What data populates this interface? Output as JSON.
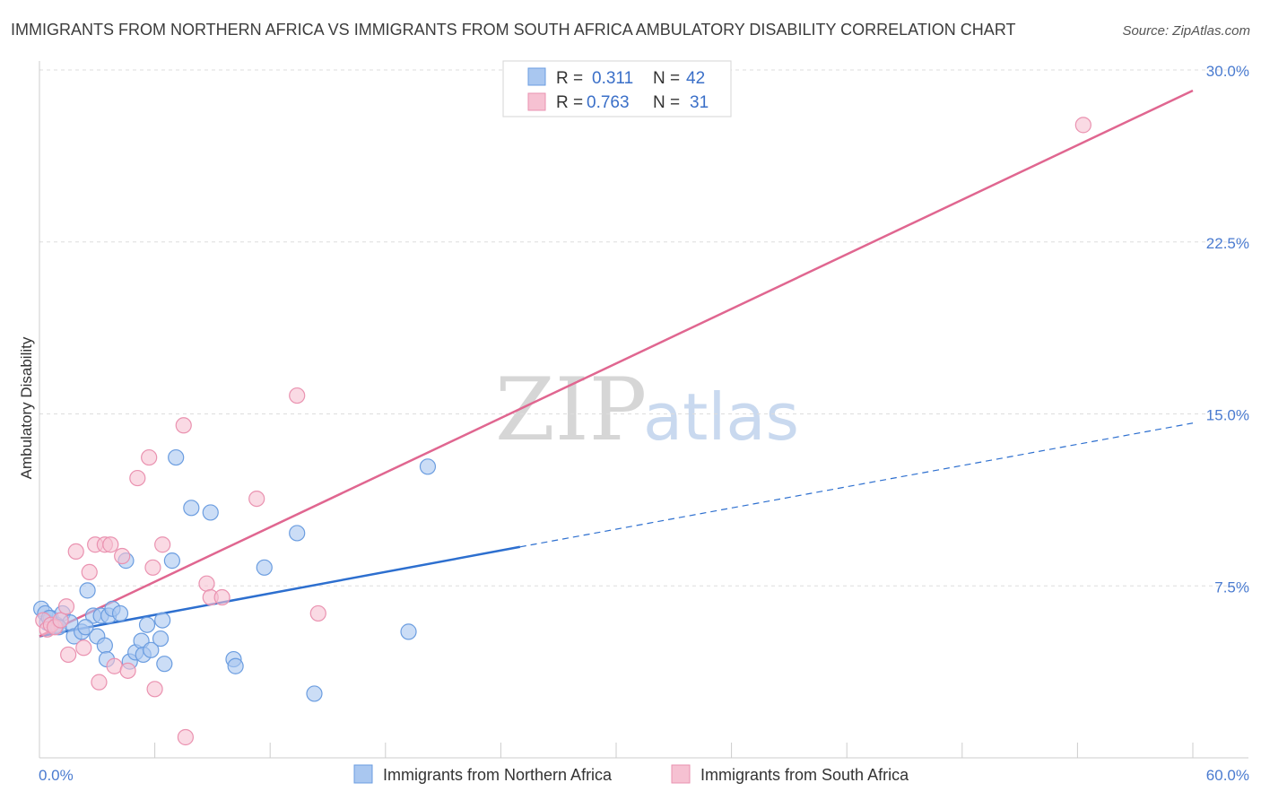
{
  "header": {
    "title": "IMMIGRANTS FROM NORTHERN AFRICA VS IMMIGRANTS FROM SOUTH AFRICA AMBULATORY DISABILITY CORRELATION CHART",
    "source": "Source: ZipAtlas.com"
  },
  "watermark": {
    "zip": "ZIP",
    "atlas": "atlas"
  },
  "legend_top": {
    "r_label": "R =",
    "n_label": "N =",
    "rows": [
      {
        "r": "0.311",
        "n": "42"
      },
      {
        "r": "0.763",
        "n": "31"
      }
    ]
  },
  "legend_bottom": [
    "Immigrants from Northern Africa",
    "Immigrants from South Africa"
  ],
  "colors": {
    "blue_fill": "#a9c7f0",
    "blue_stroke": "#6b9de0",
    "blue_line": "#2d6fcf",
    "pink_fill": "#f6c1d2",
    "pink_stroke": "#ea92b0",
    "pink_line": "#e06690",
    "tick_text": "#4a7bd0",
    "grid": "#dddddd"
  },
  "chart_data": {
    "type": "scatter",
    "title": "IMMIGRANTS FROM NORTHERN AFRICA VS IMMIGRANTS FROM SOUTH AFRICA AMBULATORY DISABILITY CORRELATION CHART",
    "xlabel": "",
    "ylabel": "Ambulatory Disability",
    "xlim": [
      0,
      60
    ],
    "ylim": [
      0,
      30
    ],
    "x_tick_labels": [
      "0.0%",
      "60.0%"
    ],
    "y_ticks": [
      7.5,
      15.0,
      22.5,
      30.0
    ],
    "y_tick_labels": [
      "7.5%",
      "15.0%",
      "22.5%",
      "30.0%"
    ],
    "grid": true,
    "legend_position": "top-center",
    "series": [
      {
        "name": "Immigrants from Northern Africa",
        "r": 0.311,
        "n": 42,
        "points": [
          [
            0.1,
            6.5
          ],
          [
            0.3,
            6.3
          ],
          [
            0.4,
            5.9
          ],
          [
            0.6,
            6.1
          ],
          [
            0.9,
            5.8
          ],
          [
            1.2,
            6.3
          ],
          [
            1.6,
            5.9
          ],
          [
            1.8,
            5.3
          ],
          [
            2.2,
            5.5
          ],
          [
            2.5,
            7.3
          ],
          [
            2.8,
            6.2
          ],
          [
            3.0,
            5.3
          ],
          [
            3.2,
            6.2
          ],
          [
            3.4,
            4.9
          ],
          [
            3.5,
            4.3
          ],
          [
            3.6,
            6.2
          ],
          [
            3.8,
            6.5
          ],
          [
            4.2,
            6.3
          ],
          [
            4.5,
            8.6
          ],
          [
            4.7,
            4.2
          ],
          [
            5.0,
            4.6
          ],
          [
            5.3,
            5.1
          ],
          [
            5.4,
            4.5
          ],
          [
            5.6,
            5.8
          ],
          [
            5.8,
            4.7
          ],
          [
            6.3,
            5.2
          ],
          [
            6.4,
            6.0
          ],
          [
            6.5,
            4.1
          ],
          [
            6.9,
            8.6
          ],
          [
            7.1,
            13.1
          ],
          [
            7.9,
            10.9
          ],
          [
            8.9,
            10.7
          ],
          [
            10.1,
            4.3
          ],
          [
            10.2,
            4.0
          ],
          [
            11.7,
            8.3
          ],
          [
            13.4,
            9.8
          ],
          [
            14.3,
            2.8
          ],
          [
            19.2,
            5.5
          ],
          [
            20.2,
            12.7
          ],
          [
            0.5,
            6.1
          ],
          [
            1.0,
            5.7
          ],
          [
            2.4,
            5.7
          ]
        ],
        "trend": {
          "x": [
            0,
            25
          ],
          "y": [
            5.3,
            9.2
          ],
          "dashed_to": {
            "x": [
              25,
              60
            ],
            "y": [
              9.2,
              14.6
            ]
          }
        }
      },
      {
        "name": "Immigrants from South Africa",
        "r": 0.763,
        "n": 31,
        "points": [
          [
            0.2,
            6.0
          ],
          [
            0.4,
            5.6
          ],
          [
            0.6,
            5.8
          ],
          [
            0.8,
            5.7
          ],
          [
            1.1,
            6.0
          ],
          [
            1.4,
            6.6
          ],
          [
            1.5,
            4.5
          ],
          [
            1.9,
            9.0
          ],
          [
            2.3,
            4.8
          ],
          [
            2.6,
            8.1
          ],
          [
            2.9,
            9.3
          ],
          [
            3.1,
            3.3
          ],
          [
            3.4,
            9.3
          ],
          [
            3.7,
            9.3
          ],
          [
            3.9,
            4.0
          ],
          [
            4.3,
            8.8
          ],
          [
            4.6,
            3.8
          ],
          [
            5.1,
            12.2
          ],
          [
            5.7,
            13.1
          ],
          [
            5.9,
            8.3
          ],
          [
            6.0,
            3.0
          ],
          [
            6.4,
            9.3
          ],
          [
            7.5,
            14.5
          ],
          [
            7.6,
            0.9
          ],
          [
            8.7,
            7.6
          ],
          [
            8.9,
            7.0
          ],
          [
            9.5,
            7.0
          ],
          [
            11.3,
            11.3
          ],
          [
            13.4,
            15.8
          ],
          [
            14.5,
            6.3
          ],
          [
            54.3,
            27.6
          ]
        ],
        "trend": {
          "x": [
            0,
            60
          ],
          "y": [
            5.3,
            29.1
          ]
        }
      }
    ]
  }
}
